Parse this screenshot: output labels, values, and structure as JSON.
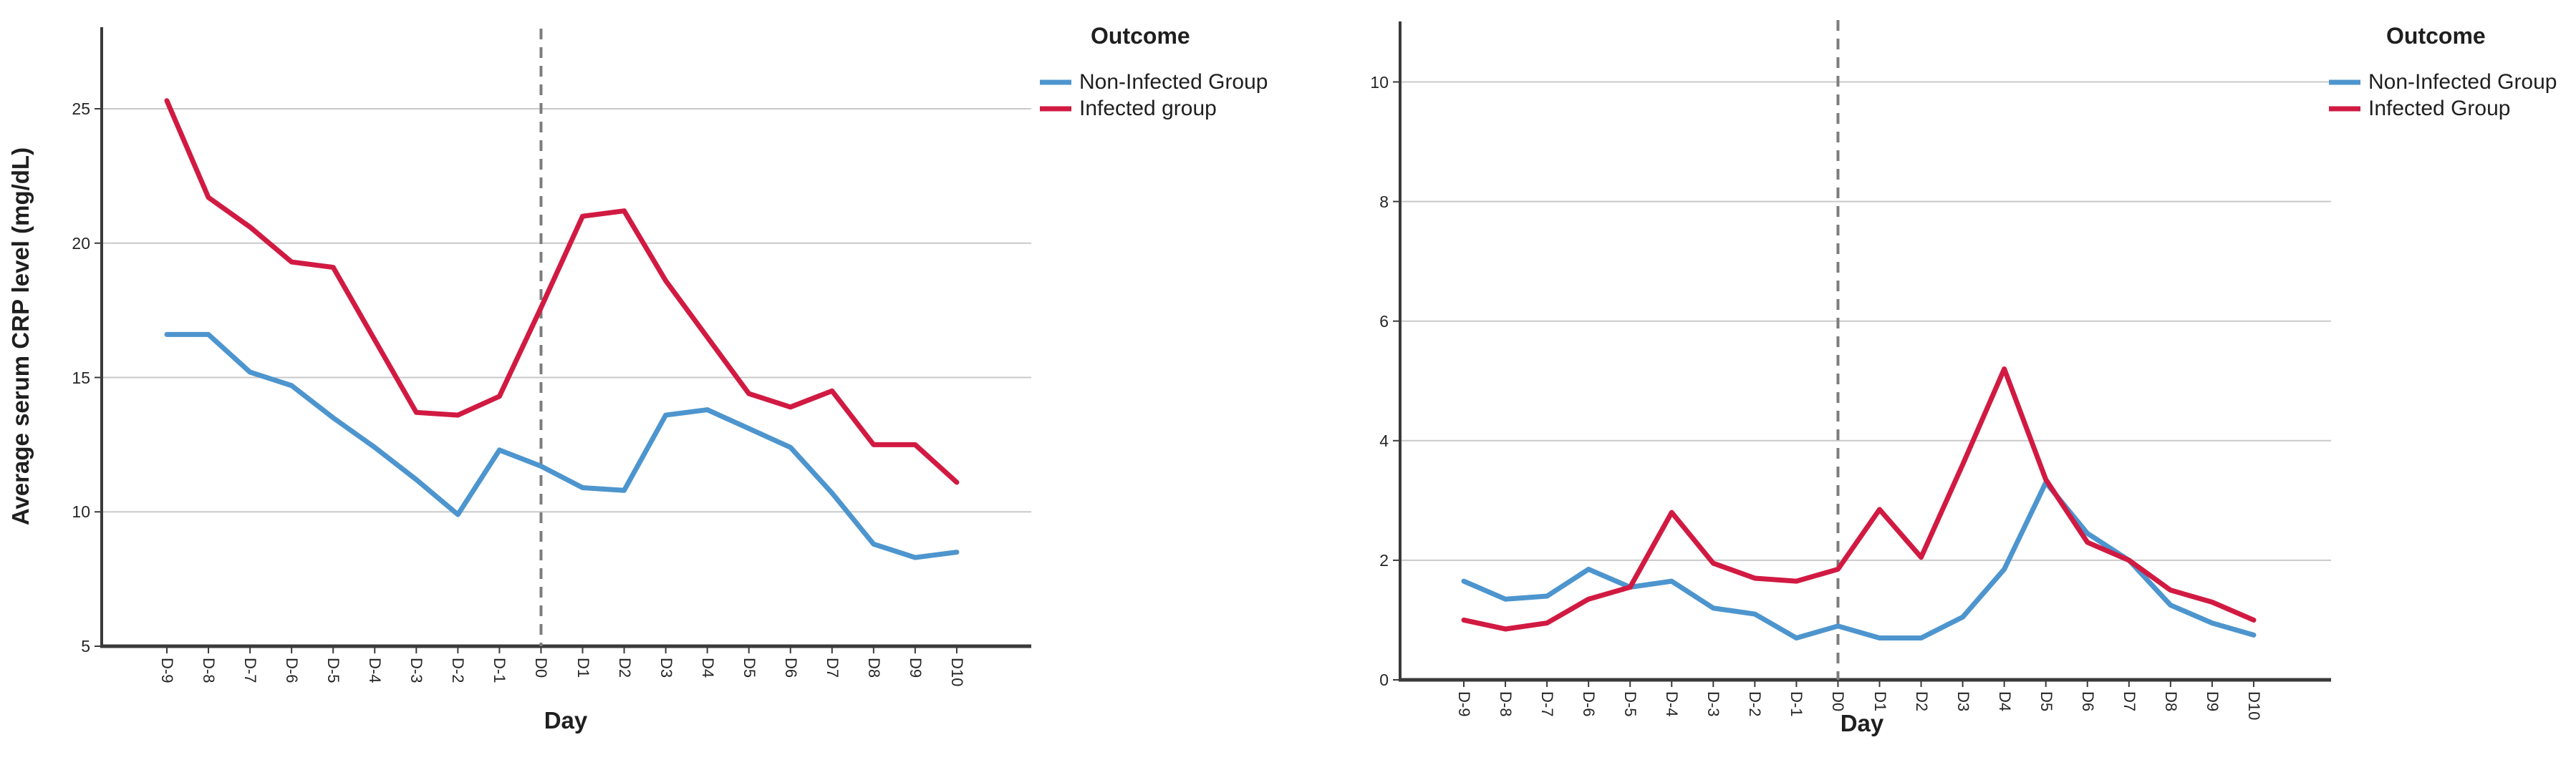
{
  "chart_data": [
    {
      "type": "line",
      "title": "",
      "xlabel": "Day",
      "ylabel": "Average serum CRP level (mg/dL)",
      "ylim": [
        5,
        25
      ],
      "yticks": [
        5,
        10,
        15,
        20,
        25
      ],
      "grid": true,
      "reference_line_x": "D0",
      "legend": {
        "title": "Outcome",
        "position": "outside-top-right"
      },
      "categories": [
        "D-9",
        "D-8",
        "D-7",
        "D-6",
        "D-5",
        "D-4",
        "D-3",
        "D-2",
        "D-1",
        "D0",
        "D1",
        "D2",
        "D3",
        "D4",
        "D5",
        "D6",
        "D7",
        "D8",
        "D9",
        "D10"
      ],
      "series": [
        {
          "name": "Non-Infected Group",
          "color": "#4D95CE",
          "values": [
            16.6,
            16.6,
            15.2,
            14.7,
            13.5,
            12.4,
            11.2,
            9.9,
            12.3,
            11.7,
            10.9,
            10.8,
            13.6,
            13.8,
            13.1,
            12.4,
            10.7,
            8.8,
            8.3,
            8.5
          ]
        },
        {
          "name": "Infected group",
          "color": "#D11A42",
          "values": [
            25.3,
            21.7,
            20.6,
            19.3,
            19.1,
            16.4,
            13.7,
            13.6,
            14.3,
            17.6,
            21.0,
            21.2,
            18.6,
            16.5,
            14.4,
            13.9,
            14.5,
            12.5,
            12.5,
            11.1
          ]
        }
      ]
    },
    {
      "type": "line",
      "title": "",
      "xlabel": "Day",
      "ylabel": "",
      "ylim": [
        0,
        10
      ],
      "yticks": [
        0,
        2,
        4,
        6,
        8,
        10
      ],
      "grid": true,
      "reference_line_x": "D0",
      "legend": {
        "title": "Outcome",
        "position": "outside-top-right"
      },
      "categories": [
        "D-9",
        "D-8",
        "D-7",
        "D-6",
        "D-5",
        "D-4",
        "D-3",
        "D-2",
        "D-1",
        "D0",
        "D1",
        "D2",
        "D3",
        "D4",
        "D5",
        "D6",
        "D7",
        "D8",
        "D9",
        "D10"
      ],
      "series": [
        {
          "name": "Non-Infected Group",
          "color": "#4D95CE",
          "values": [
            1.65,
            1.35,
            1.4,
            1.85,
            1.55,
            1.65,
            1.2,
            1.1,
            0.7,
            0.9,
            0.7,
            0.7,
            1.05,
            1.85,
            3.3,
            2.45,
            2.0,
            1.25,
            0.95,
            0.75
          ]
        },
        {
          "name": "Infected Group",
          "color": "#D11A42",
          "values": [
            1.0,
            0.85,
            0.95,
            1.35,
            1.55,
            2.8,
            1.95,
            1.7,
            1.65,
            1.85,
            2.85,
            2.05,
            3.6,
            5.2,
            3.35,
            2.3,
            2.0,
            1.5,
            1.3,
            1.0
          ]
        }
      ]
    }
  ],
  "style": {
    "axis_color": "#3a3a3a",
    "grid_color": "#c9c9c9",
    "ref_line_color": "#7d7d7d",
    "background": "#ffffff"
  }
}
